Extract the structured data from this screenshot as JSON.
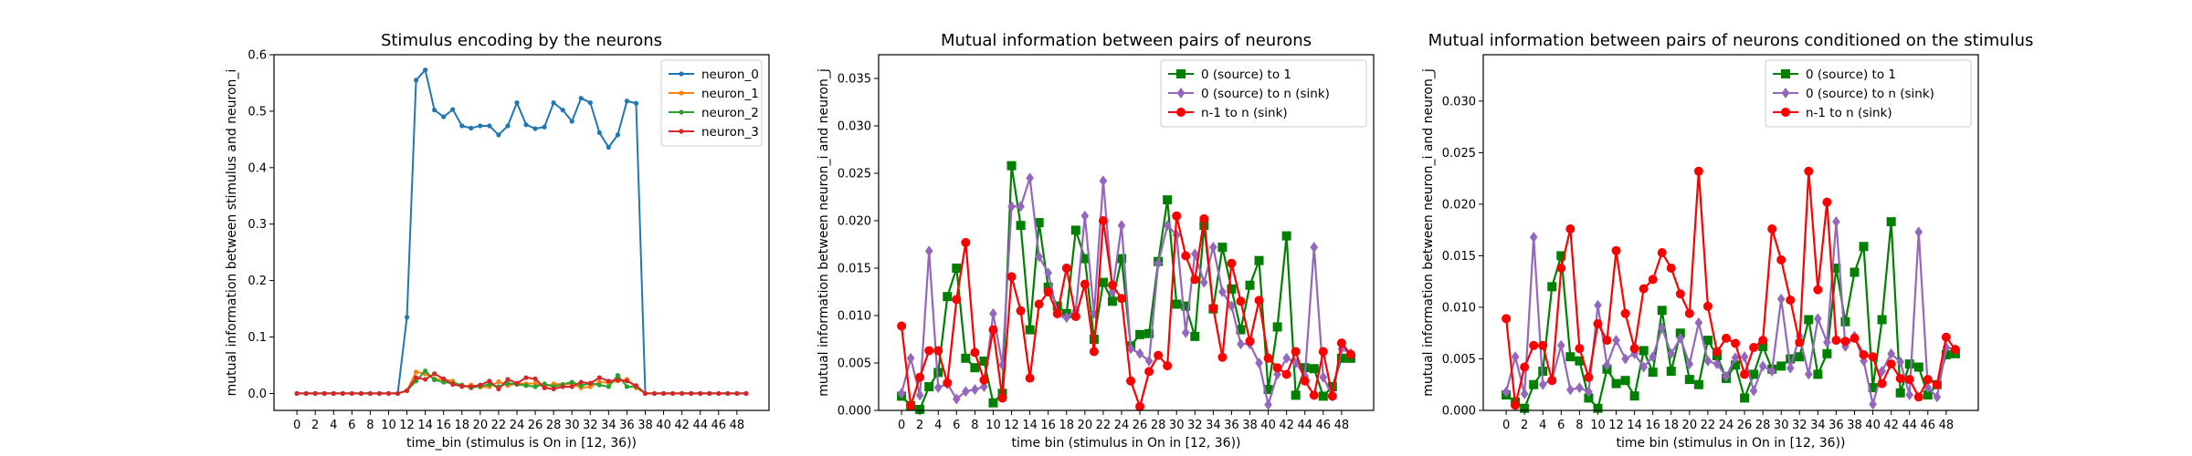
{
  "chart_data": [
    {
      "type": "line",
      "title": "Stimulus encoding by the neurons",
      "xlabel": "time_bin (stimulus is On in [12, 36))",
      "ylabel": "mutual information between stimulus and neuron_i",
      "xlim": [
        -2.5,
        51.5
      ],
      "ylim": [
        -0.03,
        0.6
      ],
      "xticks": [
        0,
        2,
        4,
        6,
        8,
        10,
        12,
        14,
        16,
        18,
        20,
        22,
        24,
        26,
        28,
        30,
        32,
        34,
        36,
        38,
        40,
        42,
        44,
        46,
        48
      ],
      "yticks": [
        0.0,
        0.1,
        0.2,
        0.3,
        0.4,
        0.5,
        0.6
      ],
      "ytick_labels": [
        "0.0",
        "0.1",
        "0.2",
        "0.3",
        "0.4",
        "0.5",
        "0.6"
      ],
      "legend_position": "top-right",
      "x": [
        0,
        1,
        2,
        3,
        4,
        5,
        6,
        7,
        8,
        9,
        10,
        11,
        12,
        13,
        14,
        15,
        16,
        17,
        18,
        19,
        20,
        21,
        22,
        23,
        24,
        25,
        26,
        27,
        28,
        29,
        30,
        31,
        32,
        33,
        34,
        35,
        36,
        37,
        38,
        39,
        40,
        41,
        42,
        43,
        44,
        45,
        46,
        47,
        48,
        49
      ],
      "series": [
        {
          "name": "neuron_0",
          "color": "#1f77b4",
          "marker": "dot",
          "values": [
            0,
            0,
            0,
            0,
            0,
            0,
            0,
            0,
            0,
            0,
            0,
            0,
            0.135,
            0.555,
            0.573,
            0.502,
            0.49,
            0.503,
            0.474,
            0.47,
            0.474,
            0.474,
            0.458,
            0.474,
            0.515,
            0.476,
            0.469,
            0.472,
            0.515,
            0.502,
            0.482,
            0.523,
            0.515,
            0.462,
            0.436,
            0.458,
            0.518,
            0.514,
            0,
            0,
            0,
            0,
            0,
            0,
            0,
            0,
            0,
            0,
            0,
            0
          ]
        },
        {
          "name": "neuron_1",
          "color": "#ff7f0e",
          "marker": "dot",
          "values": [
            0,
            0,
            0,
            0,
            0,
            0,
            0,
            0,
            0,
            0,
            0,
            0,
            0.005,
            0.038,
            0.035,
            0.026,
            0.025,
            0.022,
            0.012,
            0.015,
            0.011,
            0.012,
            0.021,
            0.014,
            0.018,
            0.017,
            0.018,
            0.012,
            0.017,
            0.016,
            0.017,
            0.01,
            0.012,
            0.02,
            0.019,
            0.022,
            0.025,
            0.01,
            0,
            0,
            0,
            0,
            0,
            0,
            0,
            0,
            0,
            0,
            0,
            0
          ]
        },
        {
          "name": "neuron_2",
          "color": "#2ca02c",
          "marker": "dot",
          "values": [
            0,
            0,
            0,
            0,
            0,
            0,
            0,
            0,
            0,
            0,
            0,
            0,
            0.005,
            0.022,
            0.04,
            0.024,
            0.02,
            0.018,
            0.015,
            0.01,
            0.013,
            0.016,
            0.012,
            0.018,
            0.016,
            0.014,
            0.012,
            0.017,
            0.012,
            0.016,
            0.02,
            0.014,
            0.018,
            0.015,
            0.012,
            0.032,
            0.012,
            0.012,
            0,
            0,
            0,
            0,
            0,
            0,
            0,
            0,
            0,
            0,
            0,
            0
          ]
        },
        {
          "name": "neuron_3",
          "color": "#d62728",
          "marker": "dot",
          "values": [
            0,
            0,
            0,
            0,
            0,
            0,
            0,
            0,
            0,
            0,
            0,
            0,
            0.005,
            0.028,
            0.025,
            0.035,
            0.026,
            0.016,
            0.013,
            0.012,
            0.015,
            0.022,
            0.008,
            0.025,
            0.018,
            0.028,
            0.026,
            0.01,
            0.008,
            0.012,
            0.012,
            0.02,
            0.018,
            0.028,
            0.022,
            0.024,
            0.022,
            0.014,
            0,
            0,
            0,
            0,
            0,
            0,
            0,
            0,
            0,
            0,
            0,
            0
          ]
        }
      ]
    },
    {
      "type": "line",
      "title": "Mutual information between pairs of neurons",
      "xlabel": "time bin (stimulus in On in [12, 36))",
      "ylabel": "mutual information between neuron_i and neuron_j",
      "xlim": [
        -2.5,
        51.5
      ],
      "ylim": [
        0,
        0.0375
      ],
      "xticks": [
        0,
        2,
        4,
        6,
        8,
        10,
        12,
        14,
        16,
        18,
        20,
        22,
        24,
        26,
        28,
        30,
        32,
        34,
        36,
        38,
        40,
        42,
        44,
        46,
        48
      ],
      "yticks": [
        0.0,
        0.005,
        0.01,
        0.015,
        0.02,
        0.025,
        0.03,
        0.035
      ],
      "ytick_labels": [
        "0.000",
        "0.005",
        "0.010",
        "0.015",
        "0.020",
        "0.025",
        "0.030",
        "0.035"
      ],
      "legend_position": "top-right",
      "x": [
        0,
        1,
        2,
        3,
        4,
        5,
        6,
        7,
        8,
        9,
        10,
        11,
        12,
        13,
        14,
        15,
        16,
        17,
        18,
        19,
        20,
        21,
        22,
        23,
        24,
        25,
        26,
        27,
        28,
        29,
        30,
        31,
        32,
        33,
        34,
        35,
        36,
        37,
        38,
        39,
        40,
        41,
        42,
        43,
        44,
        45,
        46,
        47,
        48,
        49
      ],
      "series": [
        {
          "name": "0 (source) to 1",
          "color": "#008000",
          "marker": "square",
          "values": [
            0.0015,
            0.0005,
            0.0001,
            0.0025,
            0.004,
            0.012,
            0.015,
            0.0055,
            0.0045,
            0.0052,
            0.0008,
            0.0018,
            0.0258,
            0.0195,
            0.0085,
            0.0198,
            0.013,
            0.011,
            0.0102,
            0.019,
            0.016,
            0.0075,
            0.0135,
            0.0115,
            0.016,
            0.0068,
            0.008,
            0.0081,
            0.0157,
            0.0222,
            0.0112,
            0.011,
            0.0078,
            0.0195,
            0.0107,
            0.0172,
            0.0128,
            0.0085,
            0.0132,
            0.0158,
            0.0022,
            0.0088,
            0.0184,
            0.0016,
            0.0045,
            0.0044,
            0.0015,
            0.0025,
            0.0055,
            0.0055
          ]
        },
        {
          "name": "0 (source) to n (sink)",
          "color": "#9467bd",
          "marker": "diamond",
          "values": [
            0.0018,
            0.0055,
            0.0016,
            0.0168,
            0.0024,
            0.0028,
            0.0012,
            0.002,
            0.0022,
            0.0025,
            0.0102,
            0.0048,
            0.0215,
            0.0215,
            0.0245,
            0.0162,
            0.0145,
            0.0102,
            0.0098,
            0.0105,
            0.0205,
            0.0102,
            0.0242,
            0.0125,
            0.0195,
            0.0065,
            0.006,
            0.0052,
            0.0155,
            0.0195,
            0.0185,
            0.0082,
            0.0165,
            0.0135,
            0.0172,
            0.0125,
            0.011,
            0.007,
            0.007,
            0.005,
            0.0006,
            0.0038,
            0.0055,
            0.005,
            0.0036,
            0.0172,
            0.0035,
            0.0015,
            0.0065,
            0.006
          ]
        },
        {
          "name": "n-1 to n (sink)",
          "color": "#ff0000",
          "marker": "circle",
          "values": [
            0.0089,
            0.0005,
            0.0035,
            0.0063,
            0.0063,
            0.0029,
            0.0117,
            0.0177,
            0.0061,
            0.0032,
            0.0085,
            0.0013,
            0.0141,
            0.0105,
            0.0034,
            0.0112,
            0.0125,
            0.0102,
            0.015,
            0.0099,
            0.0133,
            0.0062,
            0.02,
            0.0132,
            0.0118,
            0.0031,
            0.0004,
            0.0041,
            0.0058,
            0.0047,
            0.0205,
            0.0163,
            0.0138,
            0.0202,
            0.0108,
            0.0056,
            0.0155,
            0.0115,
            0.0073,
            0.0116,
            0.0055,
            0.0045,
            0.0038,
            0.0062,
            0.0031,
            0.0016,
            0.0062,
            0.0015,
            0.0071,
            0.0059
          ]
        }
      ]
    },
    {
      "type": "line",
      "title": "Mutual information between pairs of neurons conditioned on the stimulus",
      "xlabel": "time bin (stimulus in On in [12, 36))",
      "ylabel": "mutual information between neuron_i and neuron_j",
      "xlim": [
        -2.5,
        51.5
      ],
      "ylim": [
        0,
        0.0345
      ],
      "xticks": [
        0,
        2,
        4,
        6,
        8,
        10,
        12,
        14,
        16,
        18,
        20,
        22,
        24,
        26,
        28,
        30,
        32,
        34,
        36,
        38,
        40,
        42,
        44,
        46,
        48
      ],
      "yticks": [
        0.0,
        0.005,
        0.01,
        0.015,
        0.02,
        0.025,
        0.03
      ],
      "ytick_labels": [
        "0.000",
        "0.005",
        "0.010",
        "0.015",
        "0.020",
        "0.025",
        "0.030"
      ],
      "legend_position": "top-right",
      "x": [
        0,
        1,
        2,
        3,
        4,
        5,
        6,
        7,
        8,
        9,
        10,
        11,
        12,
        13,
        14,
        15,
        16,
        17,
        18,
        19,
        20,
        21,
        22,
        23,
        24,
        25,
        26,
        27,
        28,
        29,
        30,
        31,
        32,
        33,
        34,
        35,
        36,
        37,
        38,
        39,
        40,
        41,
        42,
        43,
        44,
        45,
        46,
        47,
        48,
        49
      ],
      "series": [
        {
          "name": "0 (source) to 1",
          "color": "#008000",
          "marker": "square",
          "values": [
            0.0015,
            0.0008,
            0.0002,
            0.0025,
            0.0038,
            0.012,
            0.015,
            0.0052,
            0.0048,
            0.0012,
            0.0002,
            0.004,
            0.0026,
            0.0029,
            0.0014,
            0.0058,
            0.0037,
            0.0097,
            0.0038,
            0.0075,
            0.003,
            0.0025,
            0.0068,
            0.0053,
            0.0031,
            0.0044,
            0.0012,
            0.0035,
            0.0062,
            0.004,
            0.0043,
            0.005,
            0.0052,
            0.0088,
            0.0035,
            0.0055,
            0.0138,
            0.0086,
            0.0134,
            0.0159,
            0.0022,
            0.0088,
            0.0183,
            0.0017,
            0.0045,
            0.0042,
            0.0015,
            0.0025,
            0.0054,
            0.0055
          ]
        },
        {
          "name": "0 (source) to n (sink)",
          "color": "#9467bd",
          "marker": "diamond",
          "values": [
            0.0018,
            0.0052,
            0.0016,
            0.0168,
            0.0025,
            0.003,
            0.0063,
            0.002,
            0.0022,
            0.0018,
            0.0102,
            0.0044,
            0.0068,
            0.005,
            0.0055,
            0.0042,
            0.0052,
            0.008,
            0.0055,
            0.007,
            0.0045,
            0.0085,
            0.0048,
            0.0045,
            0.0033,
            0.0051,
            0.0052,
            0.0019,
            0.0043,
            0.0038,
            0.0108,
            0.0041,
            0.0072,
            0.0035,
            0.0089,
            0.0066,
            0.0183,
            0.0062,
            0.0072,
            0.0048,
            0.0006,
            0.0038,
            0.0055,
            0.0047,
            0.0015,
            0.0173,
            0.0022,
            0.0013,
            0.0061,
            0.0059
          ]
        },
        {
          "name": "n-1 to n (sink)",
          "color": "#ff0000",
          "marker": "circle",
          "values": [
            0.0089,
            0.0005,
            0.0042,
            0.0063,
            0.0063,
            0.0029,
            0.0138,
            0.0176,
            0.006,
            0.0032,
            0.0084,
            0.0068,
            0.0155,
            0.0094,
            0.006,
            0.0118,
            0.0127,
            0.0153,
            0.0138,
            0.0113,
            0.0094,
            0.0232,
            0.0101,
            0.0057,
            0.007,
            0.0065,
            0.0035,
            0.0061,
            0.0068,
            0.0176,
            0.0146,
            0.0107,
            0.0066,
            0.0232,
            0.0117,
            0.0202,
            0.0068,
            0.0067,
            0.007,
            0.0054,
            0.0052,
            0.0026,
            0.0045,
            0.0031,
            0.003,
            0.0013,
            0.003,
            0.0025,
            0.0071,
            0.0059
          ]
        }
      ]
    }
  ]
}
